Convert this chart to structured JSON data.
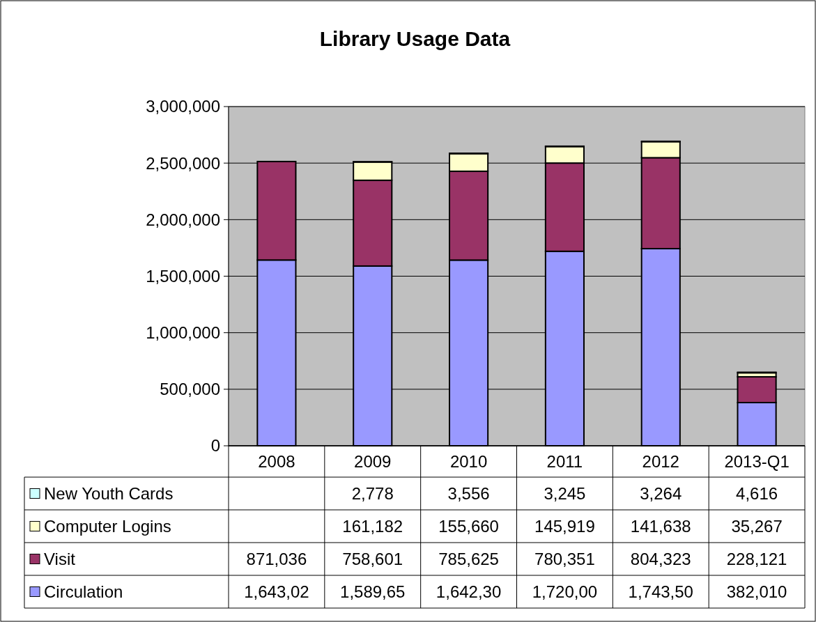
{
  "chart_data": {
    "type": "bar",
    "title": "Library Usage Data",
    "stacked": true,
    "categories": [
      "2008",
      "2009",
      "2010",
      "2011",
      "2012",
      "2013-Q1"
    ],
    "series": [
      {
        "name": "Circulation",
        "color": "#9999ff",
        "values": [
          1643020,
          1589650,
          1642300,
          1720000,
          1743500,
          382010
        ],
        "value_labels": [
          "1,643,02",
          "1,589,65",
          "1,642,30",
          "1,720,00",
          "1,743,50",
          "382,010"
        ]
      },
      {
        "name": "Visit",
        "color": "#993366",
        "values": [
          871036,
          758601,
          785625,
          780351,
          804323,
          228121
        ],
        "value_labels": [
          "871,036",
          "758,601",
          "785,625",
          "780,351",
          "804,323",
          "228,121"
        ]
      },
      {
        "name": "Computer Logins",
        "color": "#ffffcc",
        "values": [
          null,
          161182,
          155660,
          145919,
          141638,
          35267
        ],
        "value_labels": [
          null,
          "161,182",
          "155,660",
          "145,919",
          "141,638",
          "35,267"
        ]
      },
      {
        "name": "New Youth Cards",
        "color": "#ccffff",
        "values": [
          null,
          2778,
          3556,
          3245,
          3264,
          4616
        ],
        "value_labels": [
          null,
          "2,778",
          "3,556",
          "3,245",
          "3,264",
          "4,616"
        ]
      }
    ],
    "ylim": [
      0,
      3000000
    ],
    "yticks": [
      0,
      {
        "value": 500000,
        "label": "500,000"
      },
      {
        "value": 1000000,
        "label": "1,000,000"
      },
      {
        "value": 1500000,
        "label": "1,500,000"
      },
      {
        "value": 2000000,
        "label": "2,000,000"
      },
      {
        "value": 2500000,
        "label": "2,500,000"
      },
      {
        "value": 3000000,
        "label": "3,000,000"
      }
    ],
    "grid": "y",
    "legend": "bottom"
  }
}
